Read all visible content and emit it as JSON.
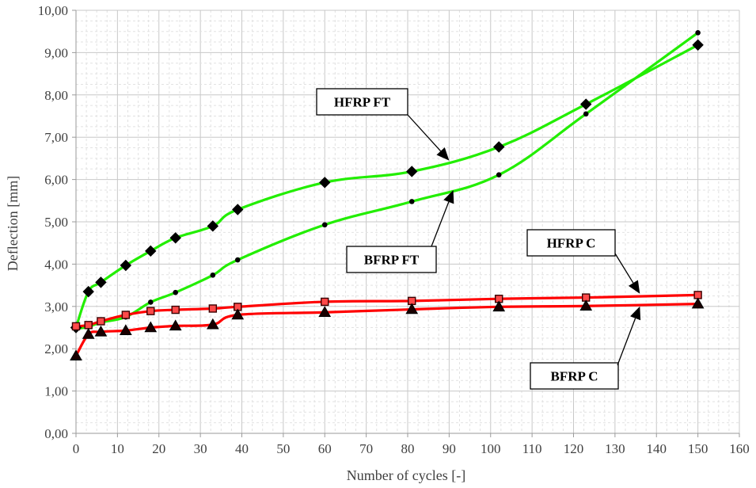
{
  "chart_data": {
    "type": "line",
    "title": "",
    "xlabel": "Number of cycles [-]",
    "ylabel": "Deflection [mm]",
    "xlim": [
      0,
      160
    ],
    "ylim": [
      0,
      10
    ],
    "x_ticks": [
      "0",
      "10",
      "20",
      "30",
      "40",
      "50",
      "60",
      "70",
      "80",
      "90",
      "100",
      "110",
      "120",
      "130",
      "140",
      "150",
      "160"
    ],
    "y_ticks": [
      "0,00",
      "1,00",
      "2,00",
      "3,00",
      "4,00",
      "5,00",
      "6,00",
      "7,00",
      "8,00",
      "9,00",
      "10,00"
    ],
    "grid": true,
    "legend": "none",
    "series": [
      {
        "name": "HFRP FT",
        "color": "#22ee00",
        "marker": "diamond",
        "x": [
          0,
          3,
          6,
          12,
          18,
          24,
          33,
          39,
          60,
          81,
          102,
          123,
          150
        ],
        "y": [
          2.5,
          3.35,
          3.57,
          3.97,
          4.31,
          4.62,
          4.9,
          5.29,
          5.93,
          6.19,
          6.77,
          7.78,
          9.18
        ]
      },
      {
        "name": "BFRP FT",
        "color": "#22ee00",
        "marker": "circle",
        "x": [
          0,
          3,
          6,
          12,
          18,
          24,
          33,
          39,
          60,
          81,
          102,
          123,
          150
        ],
        "y": [
          2.47,
          2.52,
          2.62,
          2.75,
          3.1,
          3.33,
          3.74,
          4.1,
          4.93,
          5.48,
          6.11,
          7.55,
          9.47
        ]
      },
      {
        "name": "HFRP C",
        "color": "#ff0000",
        "marker": "square",
        "x": [
          0,
          3,
          6,
          12,
          18,
          24,
          33,
          39,
          60,
          81,
          102,
          123,
          150
        ],
        "y": [
          2.53,
          2.56,
          2.65,
          2.8,
          2.89,
          2.92,
          2.95,
          2.99,
          3.11,
          3.13,
          3.18,
          3.21,
          3.27
        ]
      },
      {
        "name": "BFRP C",
        "color": "#ff0000",
        "marker": "triangle",
        "x": [
          0,
          3,
          6,
          12,
          18,
          24,
          33,
          39,
          60,
          81,
          102,
          123,
          150
        ],
        "y": [
          1.83,
          2.34,
          2.4,
          2.43,
          2.5,
          2.54,
          2.57,
          2.8,
          2.86,
          2.93,
          2.99,
          3.01,
          3.06
        ]
      }
    ],
    "annotations": [
      {
        "text": "HFRP FT",
        "points_to": "HFRP FT",
        "arrow_x": 90,
        "arrow_y": 6.45
      },
      {
        "text": "BFRP FT",
        "points_to": "BFRP FT",
        "arrow_x": 91,
        "arrow_y": 5.75
      },
      {
        "text": "HFRP C",
        "points_to": "HFRP C",
        "arrow_x": 136,
        "arrow_y": 3.3
      },
      {
        "text": "BFRP C",
        "points_to": "BFRP C",
        "arrow_x": 136,
        "arrow_y": 3.0
      }
    ]
  }
}
